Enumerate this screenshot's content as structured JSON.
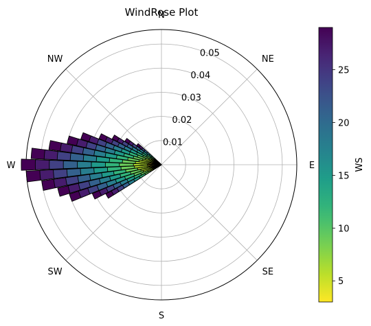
{
  "chart_data": {
    "type": "windrose",
    "title": "WindRose Plot",
    "directions": [
      "N",
      "NE",
      "E",
      "SE",
      "S",
      "SW",
      "W",
      "NW"
    ],
    "radial_ticks": [
      "0.01",
      "0.02",
      "0.03",
      "0.04",
      "0.05"
    ],
    "rmax": 0.056,
    "grid": true,
    "colorbar": {
      "label": "WS",
      "colormap": "viridis_r",
      "min": 3,
      "max": 29,
      "ticks": [
        "5",
        "10",
        "15",
        "20",
        "25"
      ]
    },
    "bar_edge_color": "#000000",
    "sectors_deg": [
      240,
      245,
      250,
      255,
      260,
      265,
      270,
      275,
      280,
      285,
      290,
      295,
      300,
      305,
      310
    ],
    "sector_max": [
      0.026,
      0.031,
      0.04,
      0.044,
      0.05,
      0.056,
      0.058,
      0.054,
      0.047,
      0.04,
      0.035,
      0.028,
      0.023,
      0.018,
      0.013
    ],
    "speed_bins": [
      3,
      6,
      9,
      12,
      15,
      18,
      21,
      24,
      27,
      29
    ]
  }
}
